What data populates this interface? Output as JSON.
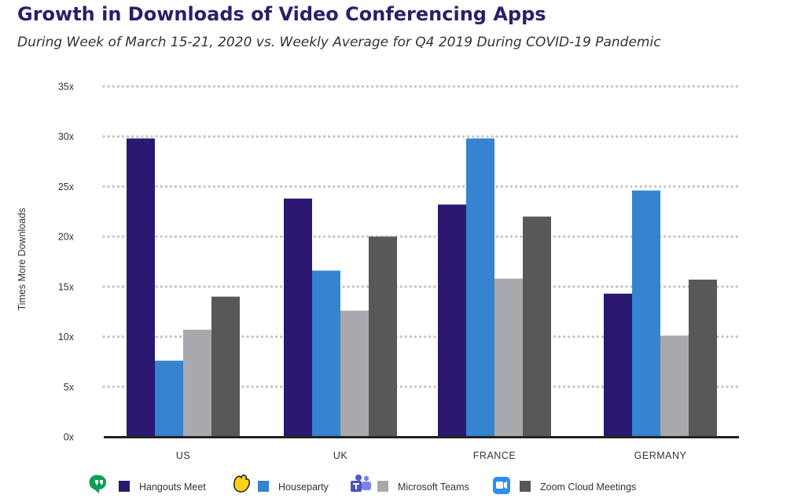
{
  "title": "Growth in Downloads of Video Conferencing Apps",
  "subtitle": "During Week of March 15-21, 2020 vs. Weekly Average for Q4 2019 During COVID-19 Pandemic",
  "chart_data": {
    "type": "bar",
    "title": "Growth in Downloads of Video Conferencing Apps",
    "subtitle": "During Week of March 15-21, 2020 vs. Weekly Average for Q4 2019 During COVID-19 Pandemic",
    "xlabel": "",
    "ylabel": "Times More Downloads",
    "ylim": [
      0,
      35
    ],
    "yticks": [
      0,
      5,
      10,
      15,
      20,
      25,
      30,
      35
    ],
    "ytick_labels": [
      "0x",
      "5x",
      "10x",
      "15x",
      "20x",
      "25x",
      "30x",
      "35x"
    ],
    "grid": true,
    "legend_position": "bottom",
    "categories": [
      "US",
      "UK",
      "FRANCE",
      "GERMANY"
    ],
    "series": [
      {
        "name": "Hangouts Meet",
        "color": "#2a1870",
        "icon": "hangouts-icon",
        "values": [
          29.8,
          23.8,
          23.2,
          14.3
        ]
      },
      {
        "name": "Houseparty",
        "color": "#3683cf",
        "icon": "houseparty-wave-icon",
        "values": [
          7.6,
          16.6,
          29.8,
          24.6
        ]
      },
      {
        "name": "Microsoft Teams",
        "color": "#a8a9ad",
        "icon": "microsoft-teams-icon",
        "values": [
          10.7,
          12.6,
          15.8,
          10.1
        ]
      },
      {
        "name": "Zoom Cloud Meetings",
        "color": "#58585a",
        "icon": "zoom-camera-icon",
        "values": [
          14.0,
          20.0,
          22.0,
          15.7
        ]
      }
    ]
  }
}
